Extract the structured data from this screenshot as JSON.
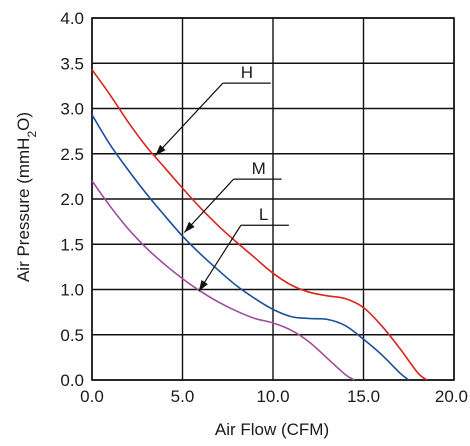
{
  "chart_data": {
    "type": "line",
    "xlabel": "Air Flow (CFM)",
    "ylabel_parts": {
      "pre": "Air Pressure (mmH",
      "sub": "2",
      "post": "O)"
    },
    "xlim": [
      0,
      20
    ],
    "ylim": [
      0,
      4
    ],
    "x_ticks": [
      "0.0",
      "5.0",
      "10.0",
      "15.0",
      "20.0"
    ],
    "y_ticks": [
      "0.0",
      "0.5",
      "1.0",
      "1.5",
      "2.0",
      "2.5",
      "3.0",
      "3.5",
      "4.0"
    ],
    "grid": true,
    "series": [
      {
        "name": "H",
        "color": "#d9261c",
        "points": [
          [
            0,
            3.43
          ],
          [
            1,
            3.15
          ],
          [
            2,
            2.85
          ],
          [
            3,
            2.58
          ],
          [
            4,
            2.35
          ],
          [
            5,
            2.12
          ],
          [
            6,
            1.9
          ],
          [
            7,
            1.7
          ],
          [
            8,
            1.52
          ],
          [
            9,
            1.35
          ],
          [
            10,
            1.18
          ],
          [
            11,
            1.05
          ],
          [
            12,
            0.97
          ],
          [
            13,
            0.93
          ],
          [
            14,
            0.9
          ],
          [
            15,
            0.8
          ],
          [
            16,
            0.6
          ],
          [
            17,
            0.35
          ],
          [
            18,
            0.08
          ],
          [
            18.5,
            0.0
          ]
        ],
        "label_at": [
          8.0,
          3.28
        ],
        "arrow_to": [
          3.5,
          2.48
        ]
      },
      {
        "name": "M",
        "color": "#1a4f9c",
        "points": [
          [
            0,
            2.93
          ],
          [
            1,
            2.6
          ],
          [
            2,
            2.32
          ],
          [
            3,
            2.06
          ],
          [
            4,
            1.82
          ],
          [
            5,
            1.59
          ],
          [
            6,
            1.39
          ],
          [
            7,
            1.21
          ],
          [
            8,
            1.04
          ],
          [
            9,
            0.9
          ],
          [
            10,
            0.78
          ],
          [
            11,
            0.7
          ],
          [
            12,
            0.68
          ],
          [
            13,
            0.67
          ],
          [
            14,
            0.6
          ],
          [
            15,
            0.45
          ],
          [
            16,
            0.28
          ],
          [
            17,
            0.08
          ],
          [
            17.5,
            0.0
          ]
        ],
        "label_at": [
          8.6,
          2.22
        ],
        "arrow_to": [
          5.1,
          1.63
        ]
      },
      {
        "name": "L",
        "color": "#9e4c9c",
        "points": [
          [
            0,
            2.2
          ],
          [
            1,
            1.92
          ],
          [
            2,
            1.67
          ],
          [
            3,
            1.46
          ],
          [
            4,
            1.28
          ],
          [
            5,
            1.12
          ],
          [
            6,
            0.98
          ],
          [
            7,
            0.86
          ],
          [
            8,
            0.76
          ],
          [
            9,
            0.68
          ],
          [
            10,
            0.63
          ],
          [
            11,
            0.55
          ],
          [
            12,
            0.42
          ],
          [
            13,
            0.24
          ],
          [
            14,
            0.06
          ],
          [
            14.5,
            0.0
          ]
        ],
        "label_at": [
          9.0,
          1.71
        ],
        "arrow_to": [
          5.9,
          0.98
        ]
      }
    ]
  }
}
